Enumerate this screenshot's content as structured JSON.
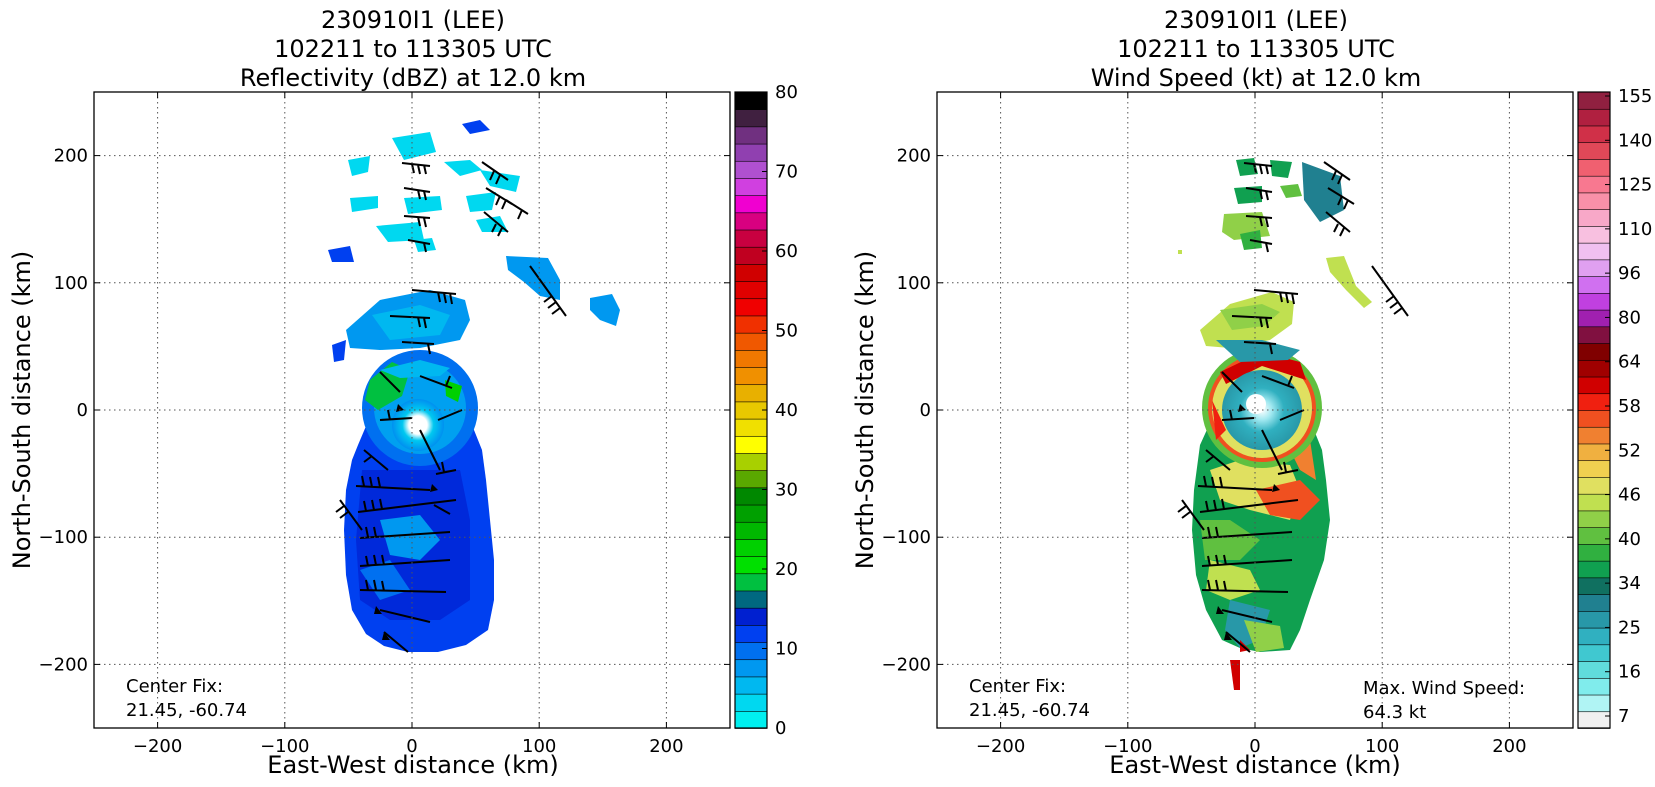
{
  "colors": {
    "reflectivity_scale": [
      "#00f0f0",
      "#00d8f0",
      "#00b8f0",
      "#0098f0",
      "#0070f0",
      "#0040f0",
      "#0020d0",
      "#006880",
      "#00c040",
      "#00e000",
      "#00d000",
      "#00b800",
      "#00a000",
      "#008800",
      "#5aa800",
      "#a8d000",
      "#ffff00",
      "#f0e000",
      "#e8c800",
      "#e8b000",
      "#f09000",
      "#f07800",
      "#f05800",
      "#f03000",
      "#f00000",
      "#e00000",
      "#d00000",
      "#c00020",
      "#c80040",
      "#d80080",
      "#f000d0",
      "#d040e0",
      "#b050d0",
      "#9040b0",
      "#703080",
      "#402040",
      "#000000"
    ],
    "wind_scale": [
      "#f0f0f0",
      "#b0f4f4",
      "#80ecec",
      "#60dcdc",
      "#40c8d0",
      "#30b0c0",
      "#2898a8",
      "#208090",
      "#107060",
      "#10a050",
      "#30b040",
      "#60c040",
      "#90d048",
      "#c0e050",
      "#e0e060",
      "#f0d050",
      "#f0b040",
      "#f08030",
      "#f05020",
      "#f02010",
      "#d00000",
      "#a00000",
      "#800000",
      "#801040",
      "#a020b0",
      "#c040e0",
      "#d070f0",
      "#e0a0f0",
      "#f0c0f0",
      "#f8c0e0",
      "#f8a8c8",
      "#f890a8",
      "#f87890",
      "#f06070",
      "#e04858",
      "#d03048",
      "#b02040",
      "#902040"
    ]
  },
  "chart_data": [
    {
      "type": "heatmap",
      "title": [
        "230910I1 (LEE)",
        "102211 to 113305 UTC",
        "Reflectivity (dBZ) at 12.0 km"
      ],
      "xlabel": "East-West distance (km)",
      "ylabel": "North-South distance (km)",
      "xlim": [
        -250,
        250
      ],
      "ylim": [
        -250,
        250
      ],
      "xticks": [
        -200,
        -100,
        0,
        100,
        200
      ],
      "yticks": [
        -200,
        -100,
        0,
        100,
        200
      ],
      "grid": true,
      "colorbar": {
        "min": 0,
        "max": 80,
        "ticks": [
          0,
          10,
          20,
          30,
          40,
          50,
          60,
          70,
          80
        ]
      },
      "annotations": [
        {
          "text": [
            "Center Fix:",
            "21.45, -60.74"
          ],
          "position": "bottom-left"
        }
      ]
    },
    {
      "type": "heatmap",
      "title": [
        "230910I1 (LEE)",
        "102211 to 113305 UTC",
        "Wind Speed (kt) at 12.0 km"
      ],
      "xlabel": "East-West distance (km)",
      "ylabel": "North-South distance (km)",
      "xlim": [
        -250,
        250
      ],
      "ylim": [
        -250,
        250
      ],
      "xticks": [
        -200,
        -100,
        0,
        100,
        200
      ],
      "yticks": [
        -200,
        -100,
        0,
        100,
        200
      ],
      "grid": true,
      "colorbar": {
        "ticks": [
          "7",
          "16",
          "25",
          "34",
          "40",
          "46",
          "52",
          "58",
          "64",
          "80",
          "96",
          "110",
          "125",
          "140",
          "155"
        ]
      },
      "annotations": [
        {
          "text": [
            "Center Fix:",
            "21.45, -60.74"
          ],
          "position": "bottom-left"
        },
        {
          "text": [
            "Max. Wind Speed:",
            "64.3 kt"
          ],
          "position": "bottom-right"
        }
      ]
    }
  ]
}
